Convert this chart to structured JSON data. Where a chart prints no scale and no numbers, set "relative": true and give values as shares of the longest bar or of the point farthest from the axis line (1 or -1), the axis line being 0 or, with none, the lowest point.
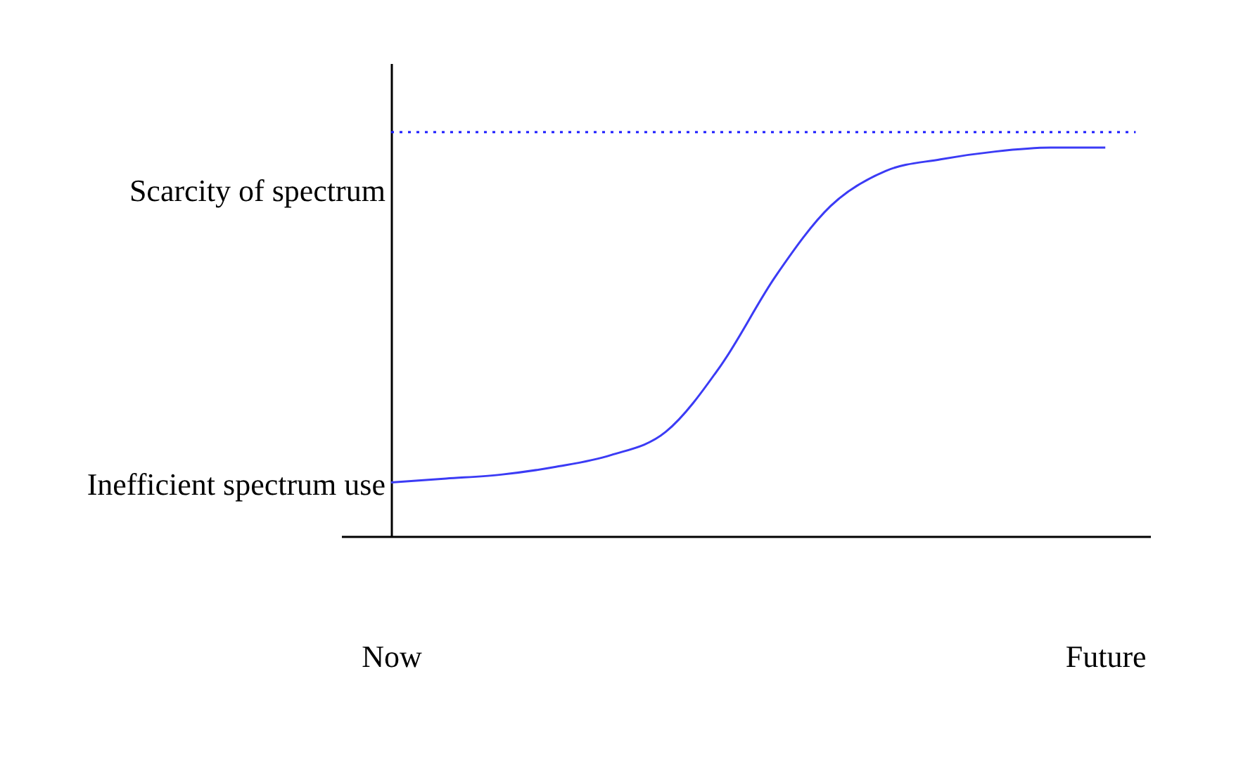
{
  "chart_data": {
    "type": "line",
    "relative": true,
    "categories": [
      "Now",
      null,
      null,
      null,
      null,
      null,
      null,
      null,
      null,
      null,
      null,
      null,
      null,
      "Future"
    ],
    "series": [
      {
        "color": "#3b3bf5",
        "values": [
          0.14,
          0.15,
          0.16,
          0.18,
          0.21,
          0.27,
          0.44,
          0.67,
          0.85,
          0.94,
          0.97,
          0.99,
          1.0,
          1.0
        ]
      }
    ],
    "ref_lines": [
      {
        "axis": "y",
        "value": 1.04,
        "color": "#1a1aff",
        "line_style": "dotted"
      }
    ],
    "annotations": [
      "Inefficient spectrum use",
      "Scarcity of spectrum"
    ],
    "marker": "none",
    "line_style": "solid"
  }
}
